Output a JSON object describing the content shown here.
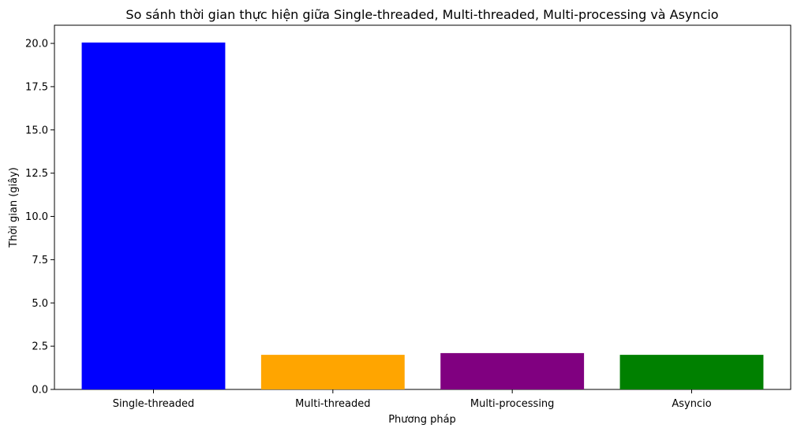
{
  "chart_data": {
    "type": "bar",
    "title": "So sánh thời gian thực hiện giữa Single-threaded, Multi-threaded, Multi-processing và Asyncio",
    "xlabel": "Phương pháp",
    "ylabel": "Thời gian (giây)",
    "categories": [
      "Single-threaded",
      "Multi-threaded",
      "Multi-processing",
      "Asyncio"
    ],
    "values": [
      20.05,
      2.0,
      2.1,
      2.0
    ],
    "colors": [
      "#0000ff",
      "#ffa500",
      "#800080",
      "#008000"
    ],
    "ylim": [
      0,
      21.05
    ],
    "yticks": [
      0,
      2.5,
      5,
      7.5,
      10,
      12.5,
      15,
      17.5,
      20
    ],
    "ytick_labels": [
      "0.0",
      "2.5",
      "5.0",
      "7.5",
      "10.0",
      "12.5",
      "15.0",
      "17.5",
      "20.0"
    ],
    "grid": false,
    "legend": "none"
  }
}
